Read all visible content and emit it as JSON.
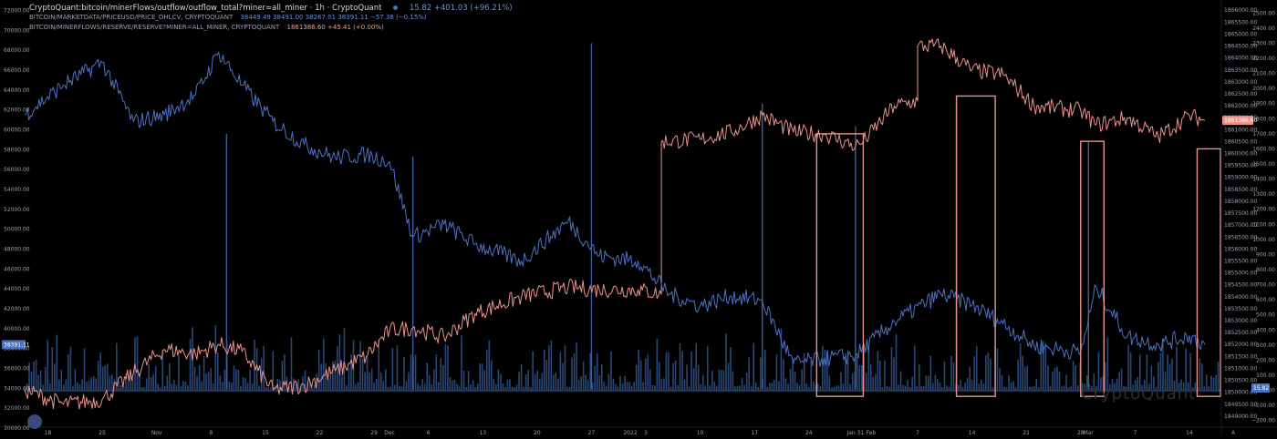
{
  "header": {
    "title": "CryptoQuant:bitcoin/minerFlows/outflow/outflow_total?miner=all_miner · 1h · CryptoQuant",
    "title_value": "15.82  +401.03 (+96.21%)",
    "line1_label": "BITCOIN/MARKETDATA/PRICEUSD/PRICE_OHLCV, CRYPTOQUANT",
    "line1_value": "38449.49  38491.00  38267.01  38391.11  −57.38 (−0.15%)",
    "line2_label": "BITCOIN/MINERFLOWS/RESERVE/RESERVE?MINER=ALL_MINER, CRYPTOQUANT",
    "line2_value": "1861386.60  +45.41 (+0.00%)"
  },
  "watermark": "CryptoQuant",
  "colors": {
    "background": "#000000",
    "price": "#4a72c4",
    "reserve": "#e9938a",
    "outflow": "#2a4775",
    "box": "#e9938a"
  },
  "axes": {
    "left": {
      "ticks": [
        "72000.00",
        "70000.00",
        "68000.00",
        "66000.00",
        "64000.00",
        "62000.00",
        "60000.00",
        "58000.00",
        "56000.00",
        "54000.00",
        "52000.00",
        "50000.00",
        "48000.00",
        "46000.00",
        "44000.00",
        "42000.00",
        "40000.00",
        "38000.00",
        "36000.00",
        "34000.00",
        "32000.00",
        "30000.00"
      ],
      "current": "38391.11"
    },
    "right_outflow": {
      "ticks": [
        "2500.00",
        "2400.00",
        "2300.00",
        "2200.00",
        "2100.00",
        "2000.00",
        "1900.00",
        "1800.00",
        "1700.00",
        "1600.00",
        "1500.00",
        "1400.00",
        "1300.00",
        "1200.00",
        "1100.00",
        "1000.00",
        "900.00",
        "800.00",
        "700.00",
        "600.00",
        "500.00",
        "400.00",
        "300.00",
        "200.00",
        "100.00",
        "0.00",
        "−100.00",
        "−200.00"
      ],
      "current": "15.82"
    },
    "right_reserve": {
      "ticks": [
        "1866000.00",
        "1865500.00",
        "1865000.00",
        "1864500.00",
        "1864000.00",
        "1863500.00",
        "1863000.00",
        "1862500.00",
        "1862000.00",
        "1861500.00",
        "1861000.00",
        "1860500.00",
        "1860000.00",
        "1859500.00",
        "1859000.00",
        "1858500.00",
        "1858000.00",
        "1857500.00",
        "1857000.00",
        "1856500.00",
        "1856000.00",
        "1855500.00",
        "1855000.00",
        "1854500.00",
        "1854000.00",
        "1853500.00",
        "1853000.00",
        "1852500.00",
        "1852000.00",
        "1851500.00",
        "1851000.00",
        "1850500.00",
        "1850000.00",
        "1849500.00",
        "1849000.00"
      ],
      "current": "1861386.60"
    },
    "x": {
      "ticks": [
        "18",
        "25",
        "Nov",
        "8",
        "15",
        "22",
        "29",
        "Dec",
        "6",
        "13",
        "20",
        "27",
        "2022",
        "3",
        "10",
        "17",
        "24",
        "Jan 31",
        "Feb",
        "7",
        "14",
        "21",
        "28",
        "Mar",
        "7",
        "14"
      ],
      "corner": "A"
    }
  },
  "chart_data": {
    "type": "line",
    "series": [
      {
        "name": "BITCOIN/MARKETDATA/PRICEUSD/PRICE_OHLCV, CRYPTOQUANT",
        "axis": "left",
        "x": [
          "2021-10-15",
          "2021-10-20",
          "2021-10-25",
          "2021-10-29",
          "2021-11-02",
          "2021-11-06",
          "2021-11-09",
          "2021-11-12",
          "2021-11-16",
          "2021-11-20",
          "2021-11-24",
          "2021-11-28",
          "2021-12-01",
          "2021-12-04",
          "2021-12-08",
          "2021-12-12",
          "2021-12-18",
          "2021-12-24",
          "2021-12-28",
          "2022-01-02",
          "2022-01-06",
          "2022-01-10",
          "2022-01-14",
          "2022-01-18",
          "2022-01-22",
          "2022-01-26",
          "2022-01-30",
          "2022-02-04",
          "2022-02-10",
          "2022-02-14",
          "2022-02-18",
          "2022-02-22",
          "2022-02-28",
          "2022-03-02",
          "2022-03-06",
          "2022-03-10",
          "2022-03-14",
          "2022-03-16"
        ],
        "y": [
          61500,
          64500,
          66800,
          60800,
          61500,
          63500,
          67800,
          64500,
          60800,
          58500,
          57200,
          57500,
          56800,
          49200,
          50500,
          48500,
          46800,
          50800,
          47300,
          46800,
          43500,
          42300,
          43300,
          42800,
          36500,
          37000,
          37300,
          40700,
          43500,
          42400,
          40500,
          38300,
          37600,
          44200,
          39200,
          38400,
          39300,
          38391
        ]
      },
      {
        "name": "BITCOIN/MINERFLOWS/RESERVE/RESERVE?MINER=ALL_MINER, CRYPTOQUANT",
        "axis": "right_reserve",
        "x": [
          "2021-10-15",
          "2021-10-20",
          "2021-10-25",
          "2021-10-29",
          "2021-11-02",
          "2021-11-06",
          "2021-11-09",
          "2021-11-12",
          "2021-11-16",
          "2021-11-20",
          "2021-11-24",
          "2021-11-28",
          "2021-12-01",
          "2021-12-04",
          "2021-12-08",
          "2021-12-12",
          "2021-12-18",
          "2021-12-24",
          "2021-12-28",
          "2022-01-02",
          "2022-01-05",
          "2022-01-05",
          "2022-01-10",
          "2022-01-14",
          "2022-01-18",
          "2022-01-22",
          "2022-01-26",
          "2022-01-30",
          "2022-01-31",
          "2022-02-04",
          "2022-02-07",
          "2022-02-07",
          "2022-02-10",
          "2022-02-14",
          "2022-02-18",
          "2022-02-22",
          "2022-02-28",
          "2022-03-02",
          "2022-03-06",
          "2022-03-10",
          "2022-03-14",
          "2022-03-16"
        ],
        "y": [
          1850100,
          1849500,
          1849700,
          1850800,
          1851800,
          1851600,
          1852000,
          1851700,
          1850100,
          1850300,
          1850900,
          1851500,
          1852600,
          1852700,
          1852300,
          1853300,
          1854000,
          1854400,
          1854300,
          1854300,
          1854100,
          1860500,
          1860600,
          1860900,
          1861600,
          1860900,
          1860800,
          1860300,
          1860500,
          1862000,
          1862200,
          1864500,
          1864500,
          1863500,
          1863300,
          1862000,
          1861800,
          1861200,
          1861500,
          1860700,
          1861600,
          1861386
        ]
      },
      {
        "name": "CryptoQuant:bitcoin/minerFlows/outflow/outflow_total?miner=all_miner",
        "axis": "right_outflow",
        "type": "bar",
        "x": [
          "2021-11-10",
          "2021-12-04",
          "2021-12-27",
          "2022-01-18",
          "2022-01-30",
          "2022-02-12",
          "2022-03-01"
        ],
        "y": [
          1700,
          1550,
          2300,
          1900,
          1750,
          1950,
          1650
        ],
        "baseline": "0–350 background noise"
      }
    ],
    "x_range": [
      "2021-10-15",
      "2022-03-18"
    ],
    "ylim_left": [
      30000,
      72500
    ],
    "ylim_right_outflow": [
      -250,
      2550
    ],
    "ylim_right_reserve": [
      1848500,
      1866200
    ],
    "annotations": [
      {
        "type": "rect",
        "x": [
          "2022-01-25",
          "2022-01-31"
        ],
        "y_outflow": [
          -40,
          1700
        ]
      },
      {
        "type": "rect",
        "x": [
          "2022-02-12",
          "2022-02-17"
        ],
        "y_outflow": [
          -40,
          1950
        ]
      },
      {
        "type": "rect",
        "x": [
          "2022-02-28",
          "2022-03-03"
        ],
        "y_outflow": [
          -40,
          1650
        ]
      },
      {
        "type": "rect",
        "x": [
          "2022-03-15",
          "2022-03-18"
        ],
        "y_outflow": [
          -40,
          1600
        ]
      }
    ],
    "grid": false,
    "legend": "top-left"
  }
}
